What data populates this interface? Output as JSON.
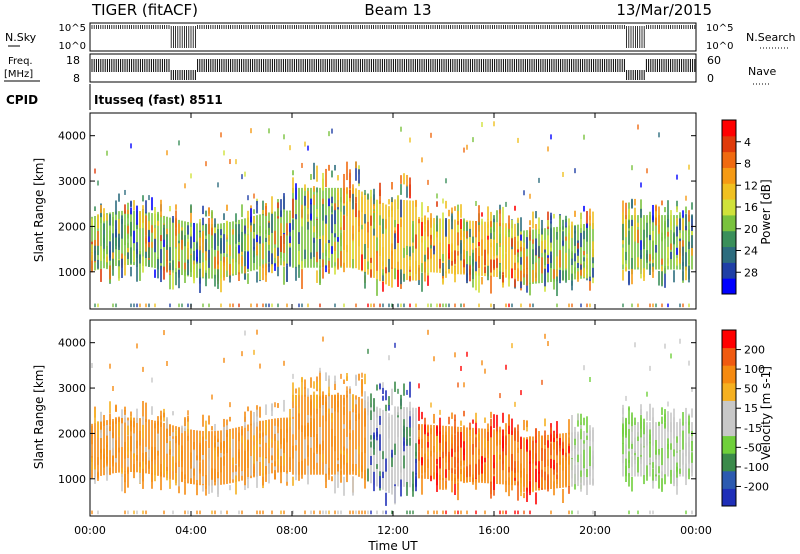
{
  "header": {
    "title": "TIGER (fitACF)",
    "beam": "Beam 13",
    "date": "13/Mar/2015"
  },
  "panels": {
    "nsky": {
      "label": "N.Sky",
      "left_ticks": [
        "10^5",
        "10^0"
      ],
      "right_ticks": [
        "10^5",
        "10^0"
      ],
      "right_label": "N.Search"
    },
    "freq": {
      "label": "Freq.",
      "unit": "[MHz]",
      "left_ticks": [
        "18",
        "8"
      ],
      "right_ticks": [
        "60",
        "0"
      ],
      "right_label": "Nave"
    },
    "cpid": {
      "label": "CPID",
      "value": "Itusseq (fast) 8511"
    }
  },
  "chart_data": [
    {
      "type": "heatmap",
      "name": "power",
      "ylabel": "Slant Range [km]",
      "ylim": [
        180,
        4500
      ],
      "y_ticks": [
        1000,
        2000,
        3000,
        4000
      ],
      "x_ticks": [
        "00:00",
        "04:00",
        "08:00",
        "12:00",
        "16:00",
        "20:00",
        "00:00"
      ],
      "xlim_hours": [
        0,
        24
      ],
      "colorbar": {
        "label": "Power [dB]",
        "ticks": [
          "4",
          "8",
          "12",
          "16",
          "20",
          "24",
          "28"
        ],
        "colors": [
          "#0000ff",
          "#1f3fa6",
          "#2c6c7e",
          "#3a8f5a",
          "#79c23d",
          "#d0e23a",
          "#f0c020",
          "#f59a14",
          "#f06a10",
          "#e03a0a",
          "#ff0000"
        ]
      }
    },
    {
      "type": "heatmap",
      "name": "velocity",
      "ylabel": "Slant Range [km]",
      "ylim": [
        180,
        4500
      ],
      "y_ticks": [
        1000,
        2000,
        3000,
        4000
      ],
      "x_ticks": [
        "00:00",
        "04:00",
        "08:00",
        "12:00",
        "16:00",
        "20:00",
        "00:00"
      ],
      "xlabel": "Time UT",
      "xlim_hours": [
        0,
        24
      ],
      "colorbar": {
        "label": "Velocity [m s-1]",
        "ticks": [
          "200",
          "100",
          "50",
          "15",
          "-15",
          "-50",
          "-100",
          "-200"
        ],
        "colors": [
          "#1f2fb8",
          "#2c5ab0",
          "#3a8a4a",
          "#6fcf3a",
          "#c8c8c8",
          "#c8c8c8",
          "#f5b020",
          "#f58a10",
          "#f05a10",
          "#ff0000"
        ]
      }
    }
  ]
}
